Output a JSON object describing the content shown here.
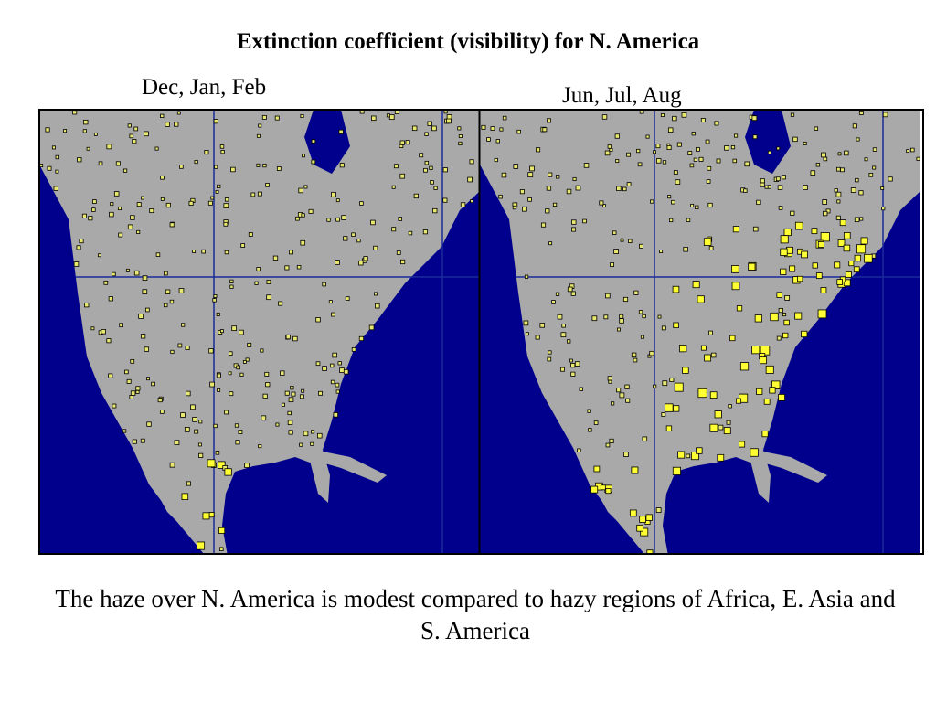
{
  "title": "Extinction coefficient (visibility) for N. America",
  "panels": [
    {
      "label": "Dec, Jan, Feb"
    },
    {
      "label": "Jun, Jul, Aug"
    }
  ],
  "caption": "The haze over N. America is modest compared to hazy regions of Africa, E. Asia and S. America"
}
